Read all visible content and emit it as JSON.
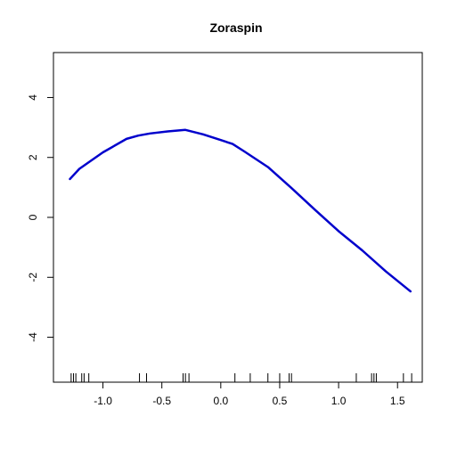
{
  "chart_data": {
    "type": "line",
    "title": "Zoraspin",
    "xlabel": "",
    "ylabel": "",
    "xlim": [
      -1.42,
      1.71
    ],
    "ylim": [
      -5.5,
      5.5
    ],
    "x_ticks": [
      -1.0,
      -0.5,
      0.0,
      0.5,
      1.0,
      1.5
    ],
    "x_tick_labels": [
      "-1.0",
      "-0.5",
      "0.0",
      "0.5",
      "1.0",
      "1.5"
    ],
    "y_ticks": [
      -4,
      -2,
      0,
      2,
      4
    ],
    "y_tick_labels": [
      "-4",
      "-2",
      "0",
      "2",
      "4"
    ],
    "grid": false,
    "series": [
      {
        "color": "#0000cc",
        "x": [
          -1.28,
          -1.2,
          -1.0,
          -0.8,
          -0.7,
          -0.6,
          -0.45,
          -0.3,
          -0.15,
          0.0,
          0.1,
          0.2,
          0.4,
          0.6,
          0.8,
          1.0,
          1.2,
          1.4,
          1.61
        ],
        "y": [
          1.28,
          1.62,
          2.17,
          2.62,
          2.73,
          2.8,
          2.87,
          2.92,
          2.77,
          2.58,
          2.45,
          2.2,
          1.68,
          0.98,
          0.25,
          -0.46,
          -1.1,
          -1.8,
          -2.47
        ]
      }
    ],
    "rug": [
      -1.27,
      -1.25,
      -1.23,
      -1.18,
      -1.16,
      -1.12,
      -0.69,
      -0.63,
      -0.32,
      -0.3,
      -0.27,
      0.12,
      0.25,
      0.4,
      0.5,
      0.58,
      0.6,
      1.15,
      1.28,
      1.3,
      1.32,
      1.55,
      1.62
    ]
  }
}
